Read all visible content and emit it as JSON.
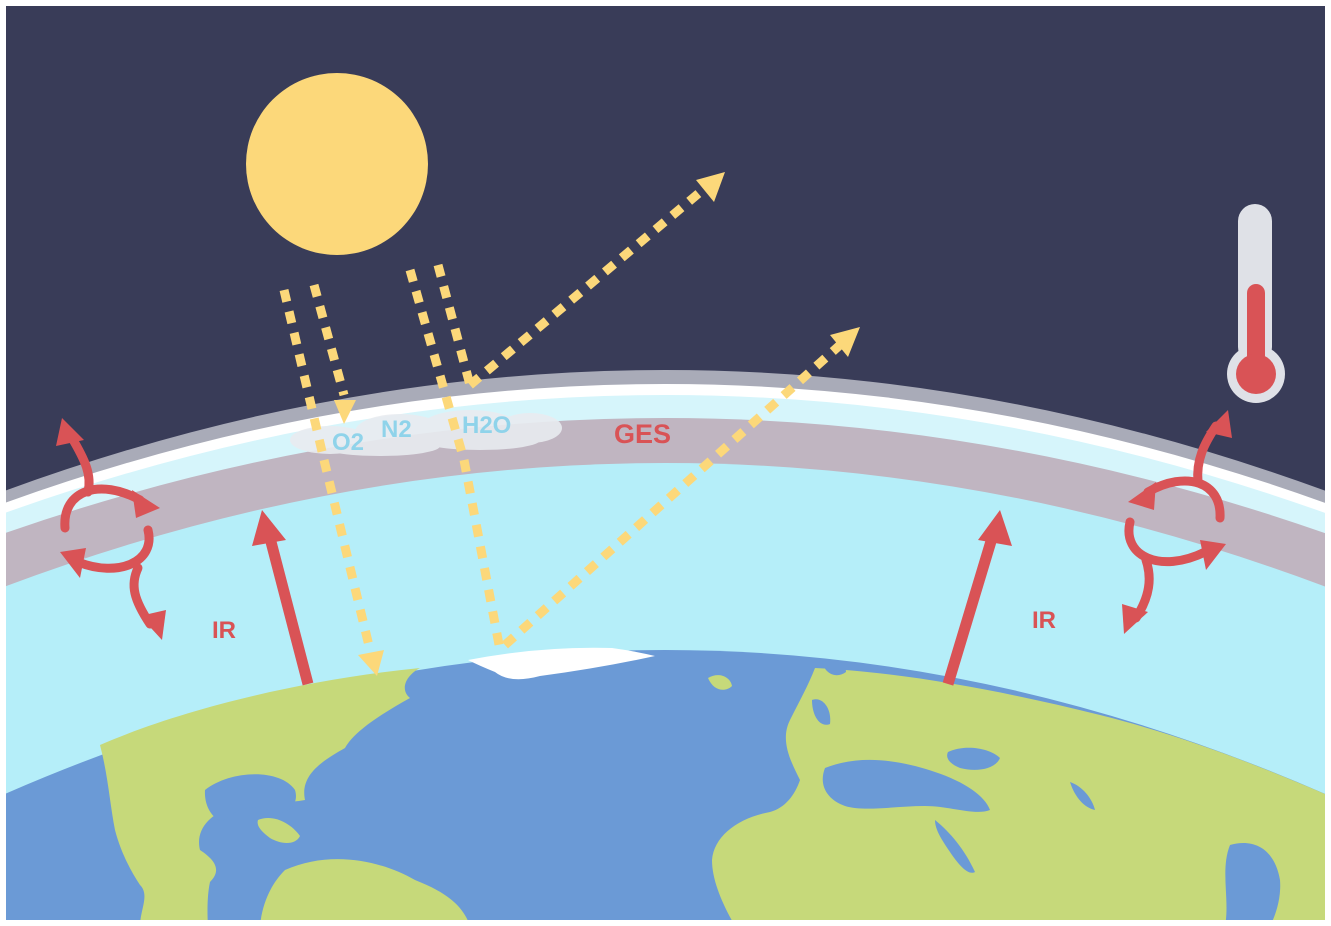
{
  "labels": {
    "o2": "O2",
    "n2": "N2",
    "h2o": "H2O",
    "ges": "GES",
    "ir_left": "IR",
    "ir_right": "IR"
  },
  "colors": {
    "space": "#393c58",
    "sun": "#fcd87a",
    "solar_ray": "#fcd87a",
    "ir_arrow": "#d95356",
    "atmosphere": "#b5eef9",
    "greenhouse_band": "#c0b5c1",
    "ocean": "#6b9ad6",
    "land": "#c6d97a",
    "gas_label": "#8fd3ea",
    "ges_label": "#d95356",
    "thermometer_tube": "#dfe1e7",
    "thermometer_fill": "#d95356"
  },
  "icons": [
    "sun-icon",
    "thermometer-icon",
    "cloud-icon"
  ]
}
